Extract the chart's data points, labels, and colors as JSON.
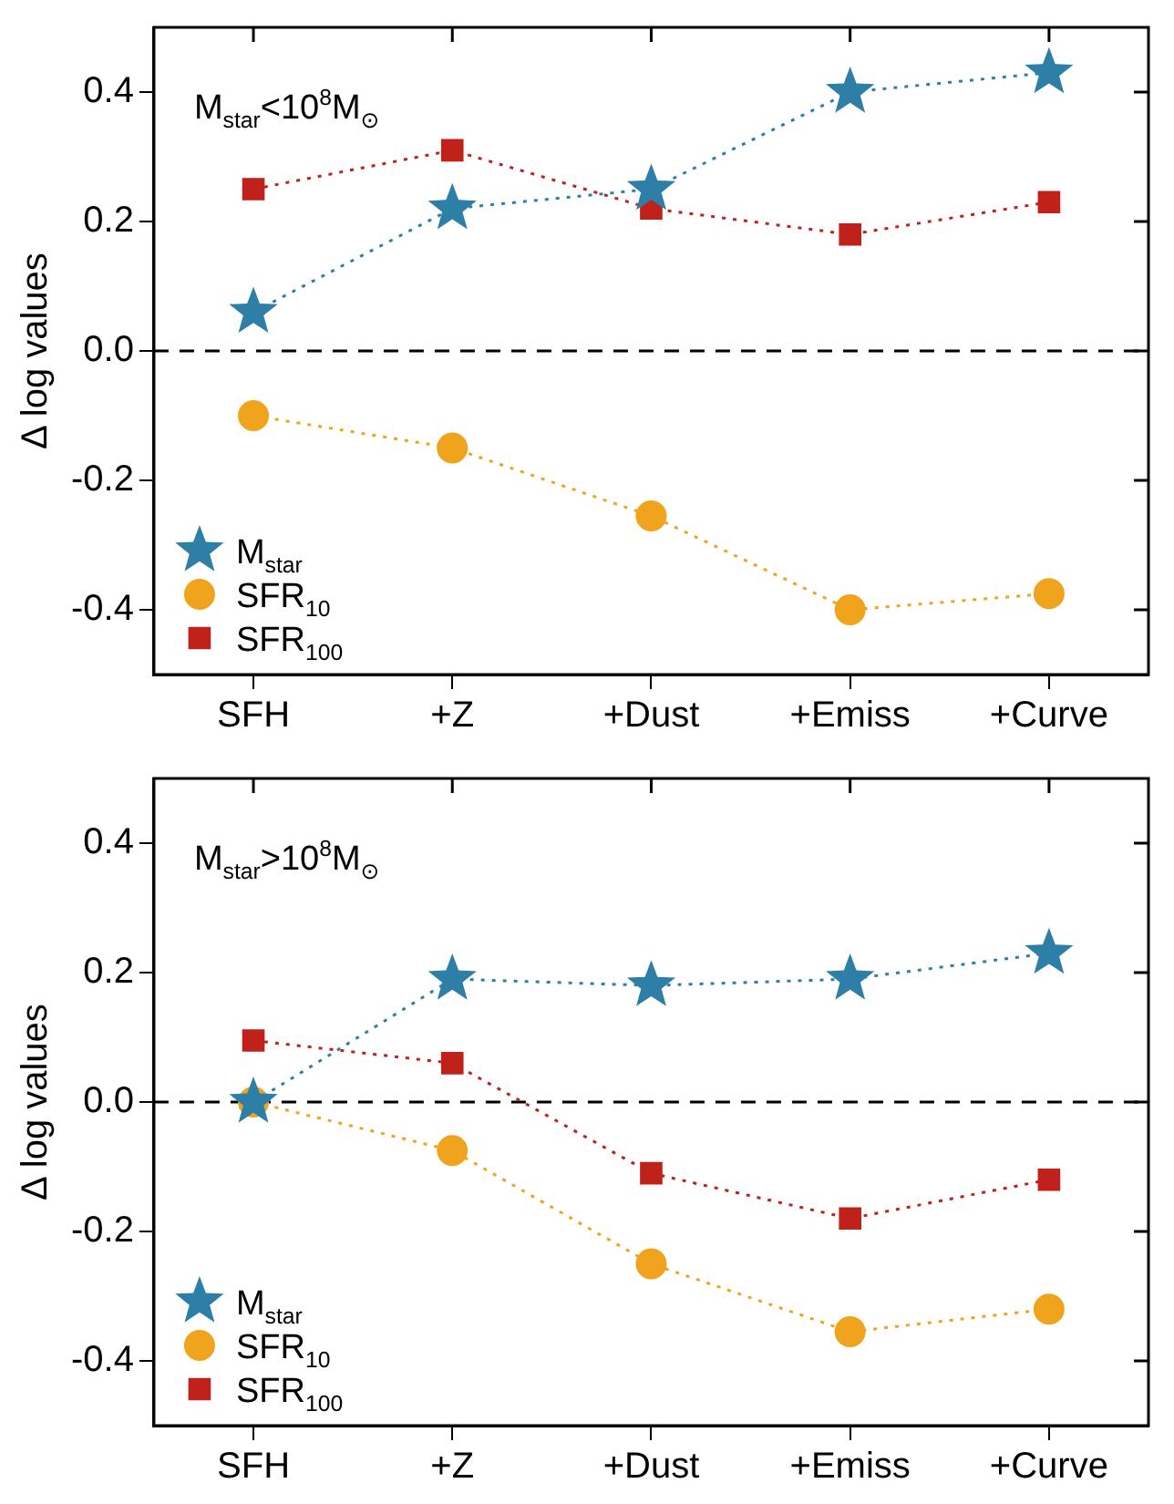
{
  "chart_data": [
    {
      "type": "line",
      "categories": [
        "SFH",
        "+Z",
        "+Dust",
        "+Emiss",
        "+Curve"
      ],
      "ylabel": "Δ log values",
      "ylim": [
        -0.5,
        0.5
      ],
      "yticks": [
        -0.4,
        -0.2,
        {
          "value": 0,
          "label": "0.0"
        },
        0.2,
        0.4
      ],
      "grid": false,
      "legend": "bottom left",
      "line_style": "dotted",
      "annotations": [
        "M$_{star}$<10$^{8}$M$_{⊙}$"
      ],
      "ref_lines": [
        {
          "axis": "y",
          "value": 0,
          "color": "#000000",
          "line_style": "dashed"
        }
      ],
      "series": [
        {
          "name": "M$_{star}$",
          "color": "#2e7fa8",
          "marker": "star",
          "values": [
            0.06,
            0.22,
            0.25,
            0.4,
            0.43
          ]
        },
        {
          "name": "SFR$_{10}$",
          "color": "#f0a31c",
          "marker": "circle",
          "values": [
            -0.1,
            -0.15,
            -0.255,
            -0.4,
            -0.375
          ]
        },
        {
          "name": "SFR$_{100}$",
          "color": "#c0211a",
          "marker": "square",
          "values": [
            0.25,
            0.31,
            0.22,
            0.18,
            0.23
          ]
        }
      ]
    },
    {
      "type": "line",
      "categories": [
        "SFH",
        "+Z",
        "+Dust",
        "+Emiss",
        "+Curve"
      ],
      "ylabel": "Δ log values",
      "ylim": [
        -0.5,
        0.5
      ],
      "yticks": [
        -0.4,
        -0.2,
        {
          "value": 0,
          "label": "0.0"
        },
        0.2,
        0.4
      ],
      "grid": false,
      "legend": "bottom left",
      "line_style": "dotted",
      "annotations": [
        "M$_{star}$>10$^{8}$M$_{⊙}$"
      ],
      "ref_lines": [
        {
          "axis": "y",
          "value": 0,
          "color": "#000000",
          "line_style": "dashed"
        }
      ],
      "series": [
        {
          "name": "M$_{star}$",
          "color": "#2e7fa8",
          "marker": "star",
          "values": [
            0.0,
            0.19,
            0.18,
            0.19,
            0.23
          ]
        },
        {
          "name": "SFR$_{10}$",
          "color": "#f0a31c",
          "marker": "circle",
          "values": [
            0.0,
            -0.075,
            -0.25,
            -0.355,
            -0.32
          ]
        },
        {
          "name": "SFR$_{100}$",
          "color": "#c0211a",
          "marker": "square",
          "values": [
            0.095,
            0.06,
            -0.11,
            -0.18,
            -0.12
          ]
        }
      ]
    }
  ]
}
